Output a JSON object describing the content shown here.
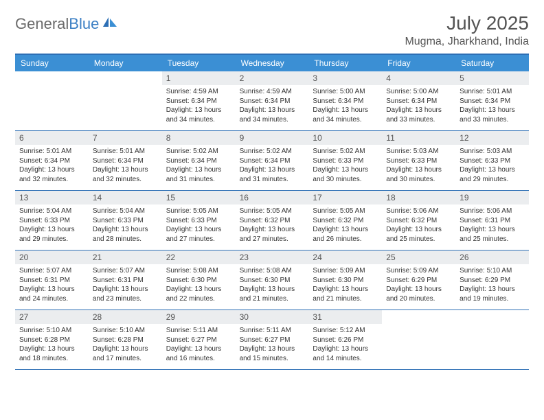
{
  "logo": {
    "text_gray": "General",
    "text_blue": "Blue"
  },
  "title": "July 2025",
  "location": "Mugma, Jharkhand, India",
  "colors": {
    "header_bg": "#3b8fd4",
    "header_text": "#ffffff",
    "border": "#2d6fb5",
    "daynum_bg": "#ebedef",
    "body_text": "#333333",
    "logo_gray": "#6b6b6b",
    "logo_blue": "#3b7fc4"
  },
  "day_names": [
    "Sunday",
    "Monday",
    "Tuesday",
    "Wednesday",
    "Thursday",
    "Friday",
    "Saturday"
  ],
  "weeks": [
    [
      {
        "empty": true
      },
      {
        "empty": true
      },
      {
        "n": "1",
        "sr": "4:59 AM",
        "ss": "6:34 PM",
        "dl": "13 hours and 34 minutes."
      },
      {
        "n": "2",
        "sr": "4:59 AM",
        "ss": "6:34 PM",
        "dl": "13 hours and 34 minutes."
      },
      {
        "n": "3",
        "sr": "5:00 AM",
        "ss": "6:34 PM",
        "dl": "13 hours and 34 minutes."
      },
      {
        "n": "4",
        "sr": "5:00 AM",
        "ss": "6:34 PM",
        "dl": "13 hours and 33 minutes."
      },
      {
        "n": "5",
        "sr": "5:01 AM",
        "ss": "6:34 PM",
        "dl": "13 hours and 33 minutes."
      }
    ],
    [
      {
        "n": "6",
        "sr": "5:01 AM",
        "ss": "6:34 PM",
        "dl": "13 hours and 32 minutes."
      },
      {
        "n": "7",
        "sr": "5:01 AM",
        "ss": "6:34 PM",
        "dl": "13 hours and 32 minutes."
      },
      {
        "n": "8",
        "sr": "5:02 AM",
        "ss": "6:34 PM",
        "dl": "13 hours and 31 minutes."
      },
      {
        "n": "9",
        "sr": "5:02 AM",
        "ss": "6:34 PM",
        "dl": "13 hours and 31 minutes."
      },
      {
        "n": "10",
        "sr": "5:02 AM",
        "ss": "6:33 PM",
        "dl": "13 hours and 30 minutes."
      },
      {
        "n": "11",
        "sr": "5:03 AM",
        "ss": "6:33 PM",
        "dl": "13 hours and 30 minutes."
      },
      {
        "n": "12",
        "sr": "5:03 AM",
        "ss": "6:33 PM",
        "dl": "13 hours and 29 minutes."
      }
    ],
    [
      {
        "n": "13",
        "sr": "5:04 AM",
        "ss": "6:33 PM",
        "dl": "13 hours and 29 minutes."
      },
      {
        "n": "14",
        "sr": "5:04 AM",
        "ss": "6:33 PM",
        "dl": "13 hours and 28 minutes."
      },
      {
        "n": "15",
        "sr": "5:05 AM",
        "ss": "6:33 PM",
        "dl": "13 hours and 27 minutes."
      },
      {
        "n": "16",
        "sr": "5:05 AM",
        "ss": "6:32 PM",
        "dl": "13 hours and 27 minutes."
      },
      {
        "n": "17",
        "sr": "5:05 AM",
        "ss": "6:32 PM",
        "dl": "13 hours and 26 minutes."
      },
      {
        "n": "18",
        "sr": "5:06 AM",
        "ss": "6:32 PM",
        "dl": "13 hours and 25 minutes."
      },
      {
        "n": "19",
        "sr": "5:06 AM",
        "ss": "6:31 PM",
        "dl": "13 hours and 25 minutes."
      }
    ],
    [
      {
        "n": "20",
        "sr": "5:07 AM",
        "ss": "6:31 PM",
        "dl": "13 hours and 24 minutes."
      },
      {
        "n": "21",
        "sr": "5:07 AM",
        "ss": "6:31 PM",
        "dl": "13 hours and 23 minutes."
      },
      {
        "n": "22",
        "sr": "5:08 AM",
        "ss": "6:30 PM",
        "dl": "13 hours and 22 minutes."
      },
      {
        "n": "23",
        "sr": "5:08 AM",
        "ss": "6:30 PM",
        "dl": "13 hours and 21 minutes."
      },
      {
        "n": "24",
        "sr": "5:09 AM",
        "ss": "6:30 PM",
        "dl": "13 hours and 21 minutes."
      },
      {
        "n": "25",
        "sr": "5:09 AM",
        "ss": "6:29 PM",
        "dl": "13 hours and 20 minutes."
      },
      {
        "n": "26",
        "sr": "5:10 AM",
        "ss": "6:29 PM",
        "dl": "13 hours and 19 minutes."
      }
    ],
    [
      {
        "n": "27",
        "sr": "5:10 AM",
        "ss": "6:28 PM",
        "dl": "13 hours and 18 minutes."
      },
      {
        "n": "28",
        "sr": "5:10 AM",
        "ss": "6:28 PM",
        "dl": "13 hours and 17 minutes."
      },
      {
        "n": "29",
        "sr": "5:11 AM",
        "ss": "6:27 PM",
        "dl": "13 hours and 16 minutes."
      },
      {
        "n": "30",
        "sr": "5:11 AM",
        "ss": "6:27 PM",
        "dl": "13 hours and 15 minutes."
      },
      {
        "n": "31",
        "sr": "5:12 AM",
        "ss": "6:26 PM",
        "dl": "13 hours and 14 minutes."
      },
      {
        "empty": true
      },
      {
        "empty": true
      }
    ]
  ],
  "labels": {
    "sunrise": "Sunrise:",
    "sunset": "Sunset:",
    "daylight": "Daylight:"
  }
}
